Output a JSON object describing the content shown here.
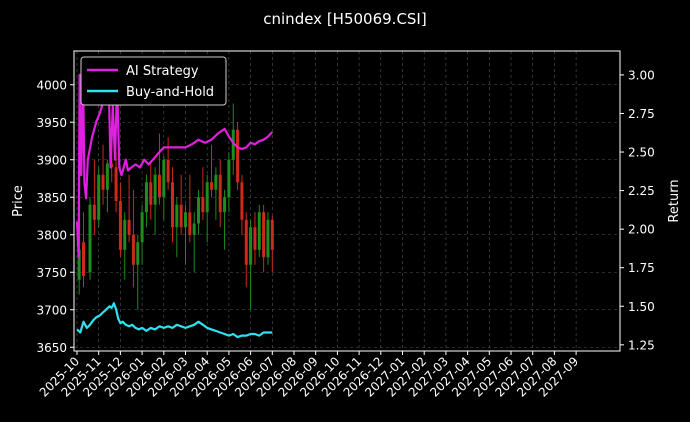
{
  "chart_data": {
    "type": "line",
    "title": "cnindex [H50069.CSI]",
    "ylabel_left": "Price",
    "ylabel_right": "Return",
    "ylim_left": [
      3645,
      4045
    ],
    "ylim_right": [
      1.21,
      3.155
    ],
    "left_ticks": [
      3650,
      3700,
      3750,
      3800,
      3850,
      3900,
      3950,
      4000
    ],
    "right_ticks": [
      1.25,
      1.5,
      1.75,
      2.0,
      2.25,
      2.5,
      2.75,
      3.0
    ],
    "right_tick_labels": [
      "1.25",
      "1.50",
      "1.75",
      "2.00",
      "2.25",
      "2.50",
      "2.75",
      "3.00"
    ],
    "x_tick_labels": [
      "2025-10",
      "2025-11",
      "2025-12",
      "2026-01",
      "2026-02",
      "2026-03",
      "2026-04",
      "2026-05",
      "2026-06",
      "2026-07",
      "2026-08",
      "2026-09",
      "2026-10",
      "2026-11",
      "2026-12",
      "2027-01",
      "2027-02",
      "2027-03",
      "2027-04",
      "2027-05",
      "2027-06",
      "2027-07",
      "2027-08",
      "2027-09"
    ],
    "grid": true,
    "legend_position": "top-left",
    "colors": {
      "background": "#000000",
      "up": "#1e8c1e",
      "down": "#cc2a1a",
      "ai": "#e020e0",
      "bh": "#30e0f0"
    },
    "candles": [
      {
        "t": 0.1,
        "o": 3740,
        "h": 3810,
        "l": 3720,
        "c": 3780
      },
      {
        "t": 0.3,
        "o": 3790,
        "h": 3830,
        "l": 3730,
        "c": 3745
      },
      {
        "t": 0.6,
        "o": 3750,
        "h": 3850,
        "l": 3740,
        "c": 3840
      },
      {
        "t": 0.8,
        "o": 3840,
        "h": 3900,
        "l": 3800,
        "c": 3820
      },
      {
        "t": 1.0,
        "o": 3820,
        "h": 3890,
        "l": 3810,
        "c": 3880
      },
      {
        "t": 1.2,
        "o": 3880,
        "h": 3920,
        "l": 3840,
        "c": 3860
      },
      {
        "t": 1.4,
        "o": 3860,
        "h": 3900,
        "l": 3830,
        "c": 3895
      },
      {
        "t": 1.6,
        "o": 3895,
        "h": 3935,
        "l": 3870,
        "c": 3890
      },
      {
        "t": 1.8,
        "o": 3890,
        "h": 3910,
        "l": 3830,
        "c": 3845
      },
      {
        "t": 2.0,
        "o": 3845,
        "h": 3870,
        "l": 3770,
        "c": 3780
      },
      {
        "t": 2.2,
        "o": 3780,
        "h": 3830,
        "l": 3740,
        "c": 3820
      },
      {
        "t": 2.4,
        "o": 3820,
        "h": 3880,
        "l": 3790,
        "c": 3800
      },
      {
        "t": 2.6,
        "o": 3800,
        "h": 3860,
        "l": 3730,
        "c": 3760
      },
      {
        "t": 2.8,
        "o": 3760,
        "h": 3800,
        "l": 3700,
        "c": 3790
      },
      {
        "t": 3.0,
        "o": 3790,
        "h": 3840,
        "l": 3760,
        "c": 3830
      },
      {
        "t": 3.2,
        "o": 3830,
        "h": 3880,
        "l": 3810,
        "c": 3870
      },
      {
        "t": 3.4,
        "o": 3870,
        "h": 3895,
        "l": 3820,
        "c": 3840
      },
      {
        "t": 3.6,
        "o": 3840,
        "h": 3890,
        "l": 3800,
        "c": 3880
      },
      {
        "t": 3.8,
        "o": 3880,
        "h": 3935,
        "l": 3840,
        "c": 3850
      },
      {
        "t": 4.0,
        "o": 3850,
        "h": 3905,
        "l": 3820,
        "c": 3900
      },
      {
        "t": 4.2,
        "o": 3900,
        "h": 3930,
        "l": 3860,
        "c": 3870
      },
      {
        "t": 4.4,
        "o": 3870,
        "h": 3890,
        "l": 3790,
        "c": 3810
      },
      {
        "t": 4.6,
        "o": 3810,
        "h": 3850,
        "l": 3770,
        "c": 3840
      },
      {
        "t": 4.8,
        "o": 3840,
        "h": 3880,
        "l": 3800,
        "c": 3810
      },
      {
        "t": 5.0,
        "o": 3810,
        "h": 3840,
        "l": 3760,
        "c": 3830
      },
      {
        "t": 5.2,
        "o": 3830,
        "h": 3880,
        "l": 3790,
        "c": 3800
      },
      {
        "t": 5.4,
        "o": 3800,
        "h": 3830,
        "l": 3750,
        "c": 3815
      },
      {
        "t": 5.6,
        "o": 3815,
        "h": 3860,
        "l": 3800,
        "c": 3850
      },
      {
        "t": 5.8,
        "o": 3850,
        "h": 3890,
        "l": 3820,
        "c": 3830
      },
      {
        "t": 6.0,
        "o": 3830,
        "h": 3880,
        "l": 3790,
        "c": 3870
      },
      {
        "t": 6.2,
        "o": 3870,
        "h": 3920,
        "l": 3850,
        "c": 3860
      },
      {
        "t": 6.4,
        "o": 3860,
        "h": 3890,
        "l": 3820,
        "c": 3880
      },
      {
        "t": 6.6,
        "o": 3880,
        "h": 3900,
        "l": 3810,
        "c": 3830
      },
      {
        "t": 6.8,
        "o": 3830,
        "h": 3860,
        "l": 3780,
        "c": 3850
      },
      {
        "t": 7.0,
        "o": 3850,
        "h": 3910,
        "l": 3830,
        "c": 3900
      },
      {
        "t": 7.2,
        "o": 3900,
        "h": 3975,
        "l": 3880,
        "c": 3940
      },
      {
        "t": 7.4,
        "o": 3940,
        "h": 3950,
        "l": 3860,
        "c": 3870
      },
      {
        "t": 7.6,
        "o": 3870,
        "h": 3880,
        "l": 3800,
        "c": 3820
      },
      {
        "t": 7.8,
        "o": 3820,
        "h": 3830,
        "l": 3730,
        "c": 3760
      },
      {
        "t": 8.0,
        "o": 3760,
        "h": 3820,
        "l": 3700,
        "c": 3810
      },
      {
        "t": 8.2,
        "o": 3810,
        "h": 3830,
        "l": 3760,
        "c": 3780
      },
      {
        "t": 8.4,
        "o": 3780,
        "h": 3840,
        "l": 3770,
        "c": 3830
      },
      {
        "t": 8.6,
        "o": 3830,
        "h": 3840,
        "l": 3750,
        "c": 3770
      },
      {
        "t": 8.8,
        "o": 3770,
        "h": 3830,
        "l": 3760,
        "c": 3820
      },
      {
        "t": 9.0,
        "o": 3820,
        "h": 3825,
        "l": 3750,
        "c": 3780
      }
    ],
    "series": [
      {
        "name": "AI Strategy",
        "axis": "right",
        "points": [
          {
            "t": 0.0,
            "v": 2.05
          },
          {
            "t": 0.08,
            "v": 1.82
          },
          {
            "t": 0.12,
            "v": 3.0
          },
          {
            "t": 0.2,
            "v": 2.35
          },
          {
            "t": 0.28,
            "v": 3.0
          },
          {
            "t": 0.34,
            "v": 2.3
          },
          {
            "t": 0.42,
            "v": 2.2
          },
          {
            "t": 0.5,
            "v": 2.45
          },
          {
            "t": 0.7,
            "v": 2.6
          },
          {
            "t": 0.9,
            "v": 2.7
          },
          {
            "t": 1.05,
            "v": 2.75
          },
          {
            "t": 1.15,
            "v": 2.8
          },
          {
            "t": 1.25,
            "v": 2.95
          },
          {
            "t": 1.35,
            "v": 2.9
          },
          {
            "t": 1.45,
            "v": 3.0
          },
          {
            "t": 1.55,
            "v": 2.4
          },
          {
            "t": 1.65,
            "v": 2.8
          },
          {
            "t": 1.75,
            "v": 2.45
          },
          {
            "t": 1.85,
            "v": 2.95
          },
          {
            "t": 1.95,
            "v": 2.4
          },
          {
            "t": 2.05,
            "v": 2.35
          },
          {
            "t": 2.15,
            "v": 2.4
          },
          {
            "t": 2.25,
            "v": 2.45
          },
          {
            "t": 2.35,
            "v": 2.38
          },
          {
            "t": 2.5,
            "v": 2.4
          },
          {
            "t": 2.7,
            "v": 2.42
          },
          {
            "t": 2.9,
            "v": 2.4
          },
          {
            "t": 3.1,
            "v": 2.45
          },
          {
            "t": 3.3,
            "v": 2.42
          },
          {
            "t": 3.5,
            "v": 2.45
          },
          {
            "t": 3.8,
            "v": 2.5
          },
          {
            "t": 4.0,
            "v": 2.53
          },
          {
            "t": 4.3,
            "v": 2.53
          },
          {
            "t": 4.6,
            "v": 2.53
          },
          {
            "t": 5.0,
            "v": 2.53
          },
          {
            "t": 5.3,
            "v": 2.55
          },
          {
            "t": 5.6,
            "v": 2.58
          },
          {
            "t": 5.9,
            "v": 2.56
          },
          {
            "t": 6.2,
            "v": 2.58
          },
          {
            "t": 6.5,
            "v": 2.62
          },
          {
            "t": 6.8,
            "v": 2.65
          },
          {
            "t": 7.0,
            "v": 2.6
          },
          {
            "t": 7.2,
            "v": 2.56
          },
          {
            "t": 7.4,
            "v": 2.53
          },
          {
            "t": 7.6,
            "v": 2.52
          },
          {
            "t": 7.8,
            "v": 2.53
          },
          {
            "t": 8.0,
            "v": 2.56
          },
          {
            "t": 8.2,
            "v": 2.55
          },
          {
            "t": 8.4,
            "v": 2.57
          },
          {
            "t": 8.6,
            "v": 2.58
          },
          {
            "t": 8.8,
            "v": 2.6
          },
          {
            "t": 9.0,
            "v": 2.63
          }
        ]
      },
      {
        "name": "Buy-and-Hold",
        "axis": "right",
        "points": [
          {
            "t": 0.0,
            "v": 1.35
          },
          {
            "t": 0.15,
            "v": 1.33
          },
          {
            "t": 0.3,
            "v": 1.4
          },
          {
            "t": 0.45,
            "v": 1.36
          },
          {
            "t": 0.6,
            "v": 1.38
          },
          {
            "t": 0.75,
            "v": 1.41
          },
          {
            "t": 0.9,
            "v": 1.43
          },
          {
            "t": 1.05,
            "v": 1.44
          },
          {
            "t": 1.2,
            "v": 1.46
          },
          {
            "t": 1.35,
            "v": 1.48
          },
          {
            "t": 1.5,
            "v": 1.5
          },
          {
            "t": 1.6,
            "v": 1.49
          },
          {
            "t": 1.7,
            "v": 1.52
          },
          {
            "t": 1.8,
            "v": 1.48
          },
          {
            "t": 1.9,
            "v": 1.42
          },
          {
            "t": 2.0,
            "v": 1.39
          },
          {
            "t": 2.1,
            "v": 1.4
          },
          {
            "t": 2.25,
            "v": 1.38
          },
          {
            "t": 2.4,
            "v": 1.37
          },
          {
            "t": 2.55,
            "v": 1.38
          },
          {
            "t": 2.7,
            "v": 1.36
          },
          {
            "t": 2.85,
            "v": 1.35
          },
          {
            "t": 3.0,
            "v": 1.36
          },
          {
            "t": 3.2,
            "v": 1.34
          },
          {
            "t": 3.4,
            "v": 1.36
          },
          {
            "t": 3.6,
            "v": 1.35
          },
          {
            "t": 3.8,
            "v": 1.37
          },
          {
            "t": 4.0,
            "v": 1.36
          },
          {
            "t": 4.2,
            "v": 1.37
          },
          {
            "t": 4.4,
            "v": 1.36
          },
          {
            "t": 4.6,
            "v": 1.38
          },
          {
            "t": 4.8,
            "v": 1.37
          },
          {
            "t": 5.0,
            "v": 1.36
          },
          {
            "t": 5.2,
            "v": 1.37
          },
          {
            "t": 5.4,
            "v": 1.38
          },
          {
            "t": 5.6,
            "v": 1.4
          },
          {
            "t": 5.8,
            "v": 1.38
          },
          {
            "t": 6.0,
            "v": 1.36
          },
          {
            "t": 6.2,
            "v": 1.35
          },
          {
            "t": 6.4,
            "v": 1.34
          },
          {
            "t": 6.6,
            "v": 1.33
          },
          {
            "t": 6.8,
            "v": 1.32
          },
          {
            "t": 7.0,
            "v": 1.31
          },
          {
            "t": 7.2,
            "v": 1.32
          },
          {
            "t": 7.4,
            "v": 1.3
          },
          {
            "t": 7.6,
            "v": 1.31
          },
          {
            "t": 7.8,
            "v": 1.31
          },
          {
            "t": 8.0,
            "v": 1.32
          },
          {
            "t": 8.2,
            "v": 1.32
          },
          {
            "t": 8.4,
            "v": 1.31
          },
          {
            "t": 8.6,
            "v": 1.33
          },
          {
            "t": 8.8,
            "v": 1.33
          },
          {
            "t": 9.0,
            "v": 1.33
          }
        ]
      }
    ]
  }
}
